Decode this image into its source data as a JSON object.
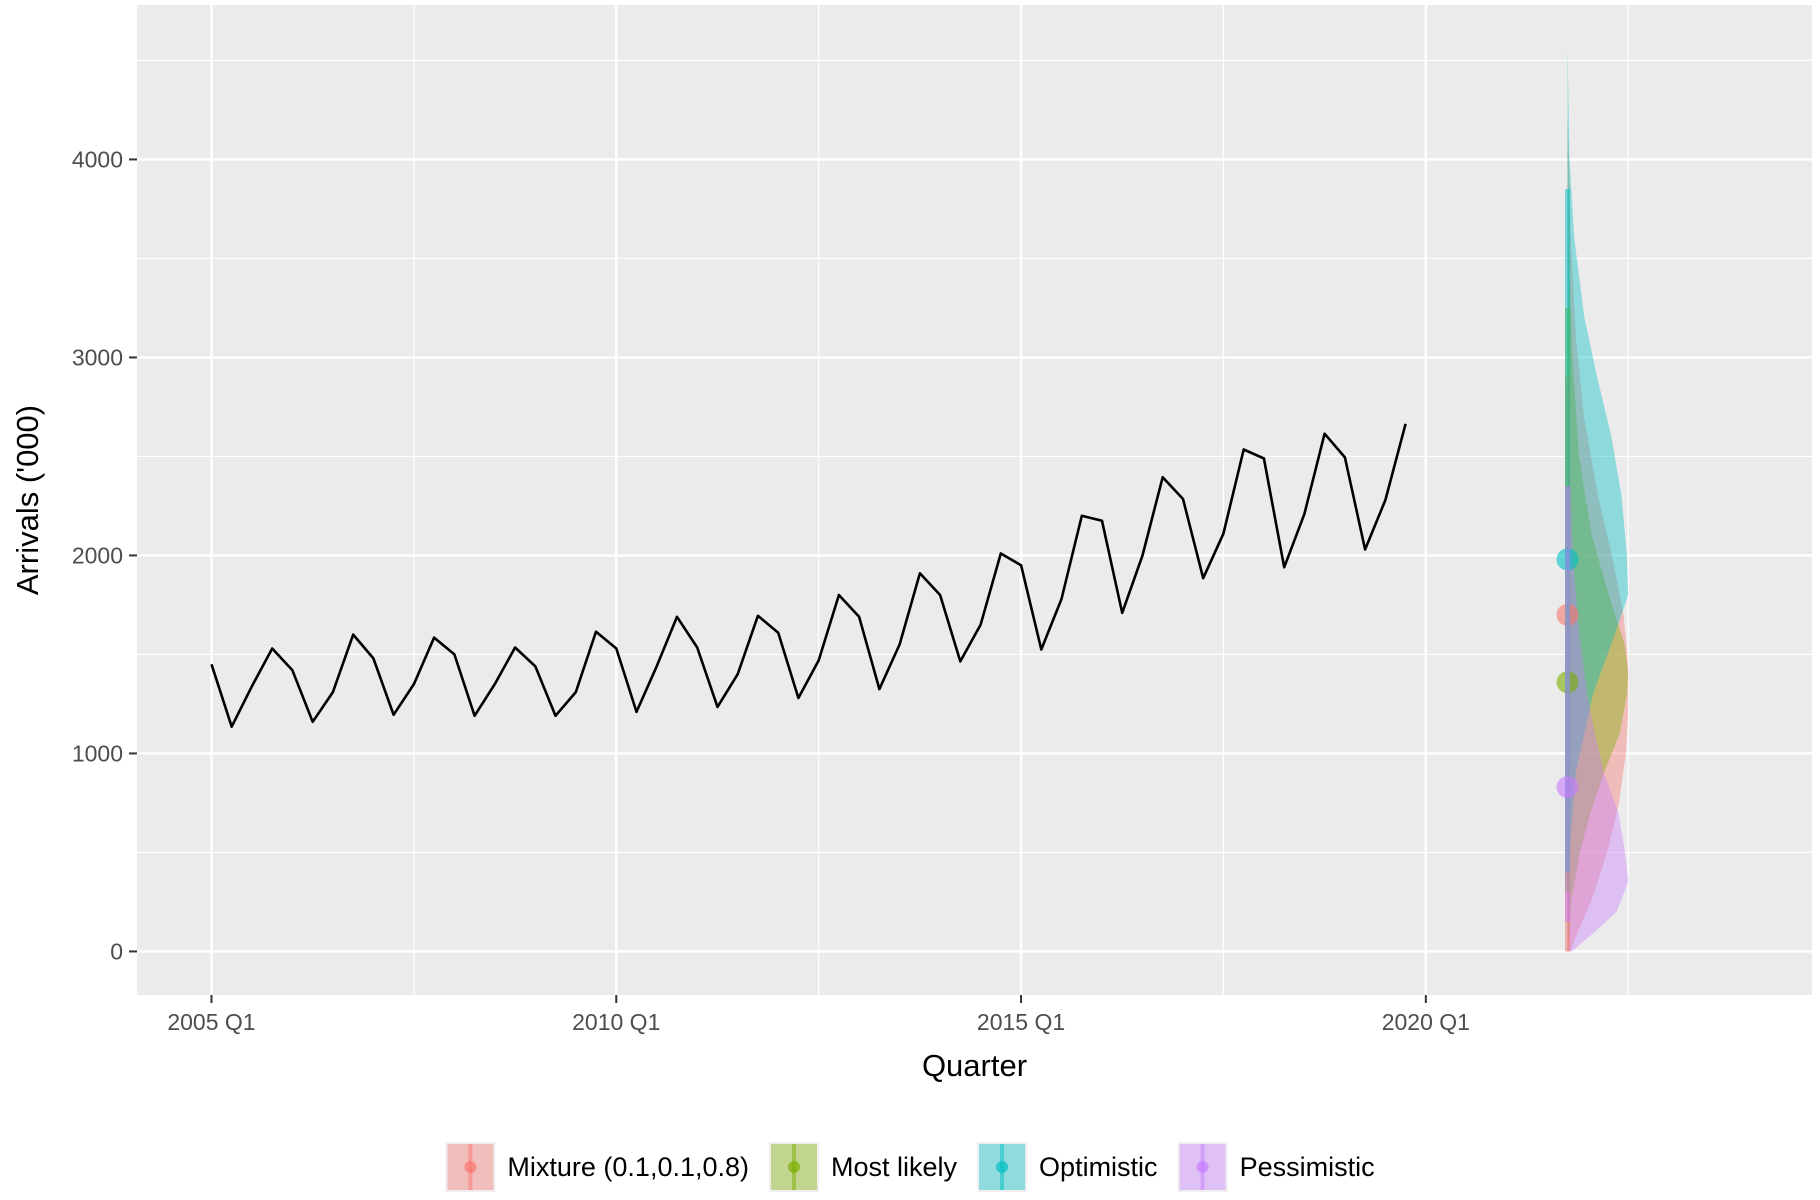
{
  "chart_data": {
    "type": "line",
    "xlabel": "Quarter",
    "ylabel": "Arrivals ('000)",
    "x_ticks": [
      "2005 Q1",
      "2010 Q1",
      "2015 Q1",
      "2020 Q1"
    ],
    "y_ticks": [
      "0",
      "1000",
      "2000",
      "3000",
      "4000"
    ],
    "xlim": [
      2004.08,
      2024.77
    ],
    "ylim": [
      -220,
      4780
    ],
    "grid": true,
    "legend_position": "bottom",
    "series": [
      {
        "type": "line",
        "color": "#000000",
        "x": [
          "2005 Q1",
          "2005 Q2",
          "2005 Q3",
          "2005 Q4",
          "2006 Q1",
          "2006 Q2",
          "2006 Q3",
          "2006 Q4",
          "2007 Q1",
          "2007 Q2",
          "2007 Q3",
          "2007 Q4",
          "2008 Q1",
          "2008 Q2",
          "2008 Q3",
          "2008 Q4",
          "2009 Q1",
          "2009 Q2",
          "2009 Q3",
          "2009 Q4",
          "2010 Q1",
          "2010 Q2",
          "2010 Q3",
          "2010 Q4",
          "2011 Q1",
          "2011 Q2",
          "2011 Q3",
          "2011 Q4",
          "2012 Q1",
          "2012 Q2",
          "2012 Q3",
          "2012 Q4",
          "2013 Q1",
          "2013 Q2",
          "2013 Q3",
          "2013 Q4",
          "2014 Q1",
          "2014 Q2",
          "2014 Q3",
          "2014 Q4",
          "2015 Q1",
          "2015 Q2",
          "2015 Q3",
          "2015 Q4",
          "2016 Q1",
          "2016 Q2",
          "2016 Q3",
          "2016 Q4",
          "2017 Q1",
          "2017 Q2",
          "2017 Q3",
          "2017 Q4",
          "2018 Q1",
          "2018 Q2",
          "2018 Q3",
          "2018 Q4",
          "2019 Q1",
          "2019 Q2",
          "2019 Q3",
          "2019 Q4"
        ],
        "values": [
          1450,
          1135,
          1340,
          1530,
          1420,
          1160,
          1310,
          1600,
          1480,
          1195,
          1350,
          1585,
          1500,
          1190,
          1350,
          1535,
          1440,
          1190,
          1310,
          1615,
          1530,
          1210,
          1440,
          1690,
          1535,
          1235,
          1400,
          1695,
          1610,
          1280,
          1470,
          1800,
          1690,
          1325,
          1550,
          1910,
          1800,
          1465,
          1650,
          2010,
          1950,
          1525,
          1780,
          2200,
          2175,
          1710,
          2000,
          2395,
          2285,
          1885,
          2110,
          2535,
          2490,
          1940,
          2210,
          2615,
          2495,
          2030,
          2280,
          2665
        ]
      }
    ],
    "forecasts": [
      {
        "name": "Mixture (0.1,0.1,0.8)",
        "color": "#F8766D",
        "x": "2021 Q4",
        "point": 1700,
        "interval": [
          0,
          2900
        ],
        "distribution": [
          [
            0,
            0.006
          ],
          [
            100,
            0.022
          ],
          [
            250,
            0.05
          ],
          [
            500,
            0.085
          ],
          [
            750,
            0.11
          ],
          [
            1000,
            0.125
          ],
          [
            1200,
            0.13
          ],
          [
            1450,
            0.13
          ],
          [
            1700,
            0.12
          ],
          [
            2000,
            0.095
          ],
          [
            2300,
            0.065
          ],
          [
            2700,
            0.035
          ],
          [
            3100,
            0.018
          ],
          [
            3600,
            0.007
          ],
          [
            4100,
            0.002
          ]
        ]
      },
      {
        "name": "Most likely",
        "color": "#7CAE00",
        "x": "2021 Q4",
        "point": 1360,
        "interval": [
          300,
          3250
        ],
        "distribution": [
          [
            0,
            0.01
          ],
          [
            250,
            0.06
          ],
          [
            500,
            0.2
          ],
          [
            700,
            0.38
          ],
          [
            900,
            0.6
          ],
          [
            1100,
            0.86
          ],
          [
            1300,
            0.98
          ],
          [
            1400,
            1.0
          ],
          [
            1550,
            0.94
          ],
          [
            1800,
            0.68
          ],
          [
            2100,
            0.4
          ],
          [
            2500,
            0.19
          ],
          [
            3000,
            0.08
          ],
          [
            3500,
            0.03
          ],
          [
            4200,
            0.005
          ]
        ]
      },
      {
        "name": "Optimistic",
        "color": "#00BFC4",
        "x": "2021 Q4",
        "point": 1980,
        "interval": [
          400,
          3850
        ],
        "distribution": [
          [
            0,
            0.002
          ],
          [
            500,
            0.03
          ],
          [
            900,
            0.12
          ],
          [
            1300,
            0.38
          ],
          [
            1600,
            0.7
          ],
          [
            1800,
            0.9
          ],
          [
            2000,
            0.88
          ],
          [
            2300,
            0.8
          ],
          [
            2600,
            0.65
          ],
          [
            2900,
            0.44
          ],
          [
            3200,
            0.25
          ],
          [
            3600,
            0.1
          ],
          [
            4000,
            0.03
          ],
          [
            4550,
            0.002
          ]
        ]
      },
      {
        "name": "Pessimistic",
        "color": "#C77CFF",
        "x": "2021 Q4",
        "point": 830,
        "interval": [
          150,
          2350
        ],
        "distribution": [
          [
            0,
            0.07
          ],
          [
            80,
            0.35
          ],
          [
            200,
            0.75
          ],
          [
            350,
            0.93
          ],
          [
            500,
            0.88
          ],
          [
            700,
            0.78
          ],
          [
            900,
            0.56
          ],
          [
            1100,
            0.42
          ],
          [
            1300,
            0.3
          ],
          [
            1600,
            0.18
          ],
          [
            2000,
            0.08
          ],
          [
            2500,
            0.03
          ],
          [
            3000,
            0.012
          ],
          [
            3600,
            0.005
          ],
          [
            4200,
            0.001
          ]
        ]
      }
    ]
  }
}
